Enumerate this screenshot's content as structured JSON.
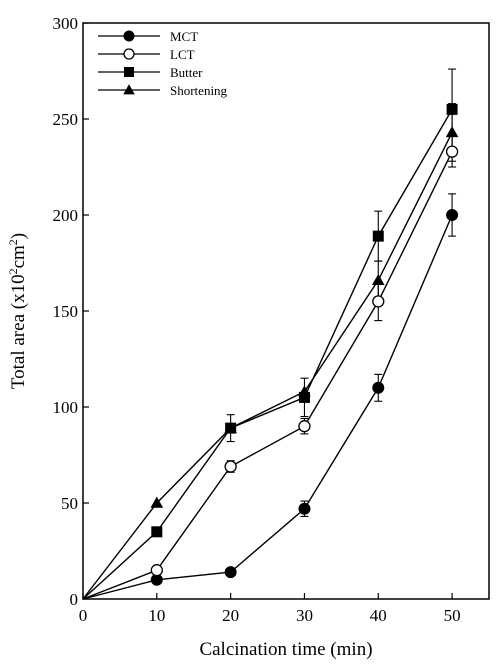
{
  "chart_data": {
    "type": "line",
    "xlabel": "Calcination time (min)",
    "ylabel": {
      "prefix": "Total area (x10",
      "sup1": "2",
      "mid": "cm",
      "sup2": "2",
      "suffix": ")"
    },
    "xlim": [
      0,
      55
    ],
    "ylim": [
      0,
      300
    ],
    "xticks": [
      0,
      10,
      20,
      30,
      40,
      50
    ],
    "yticks": [
      0,
      50,
      100,
      150,
      200,
      250,
      300
    ],
    "x": [
      0,
      10,
      20,
      30,
      40,
      50
    ],
    "legend_position": "top-left",
    "series": [
      {
        "name": "MCT",
        "marker": "circle-filled",
        "values": [
          0,
          10,
          14,
          47,
          110,
          200
        ],
        "errors": [
          0,
          0,
          0,
          4,
          7,
          11
        ]
      },
      {
        "name": "LCT",
        "marker": "circle-open",
        "values": [
          0,
          15,
          69,
          90,
          155,
          233
        ],
        "errors": [
          0,
          0,
          3,
          4,
          10,
          8
        ]
      },
      {
        "name": "Butter",
        "marker": "square-filled",
        "values": [
          0,
          35,
          89,
          105,
          189,
          255
        ],
        "errors": [
          0,
          0,
          7,
          10,
          13,
          21
        ]
      },
      {
        "name": "Shortening",
        "marker": "triangle-filled",
        "values": [
          0,
          50,
          89,
          108,
          166,
          243
        ],
        "errors": [
          0,
          0,
          0,
          0,
          10,
          15
        ]
      }
    ]
  }
}
